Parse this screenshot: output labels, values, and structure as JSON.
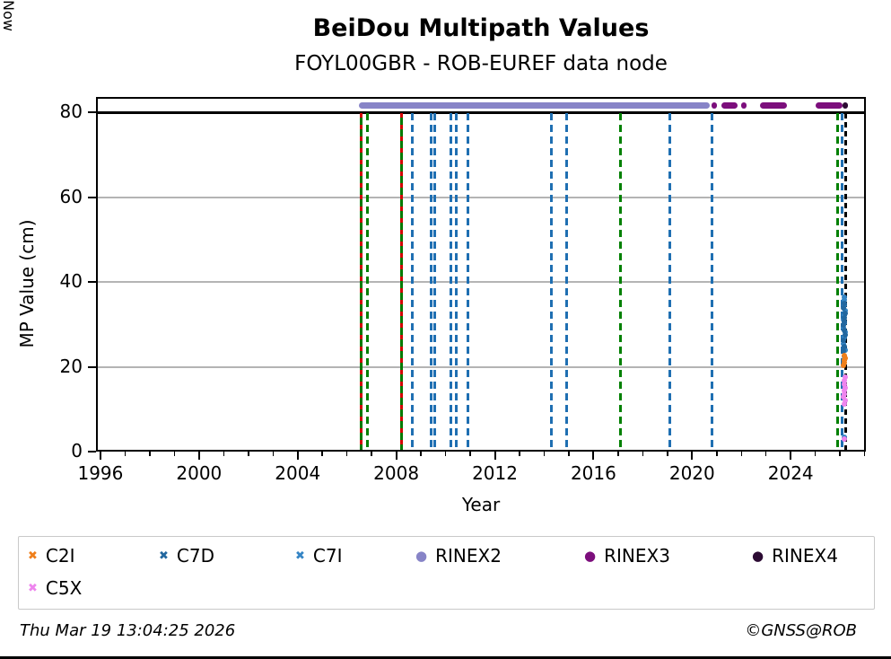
{
  "page": {
    "footer_left": "Thu Mar 19 13:04:25 2026",
    "footer_right": "©GNSS@ROB"
  },
  "chart_data": {
    "type": "scatter",
    "title": "BeiDou Multipath Values",
    "subtitle": "FOYL00GBR - ROB-EUREF data node",
    "xlabel": "Year",
    "ylabel": "MP Value (cm)",
    "xlim": [
      1995.82,
      2027.05
    ],
    "ylim": [
      0,
      83.6
    ],
    "xticks": [
      1996,
      2000,
      2004,
      2008,
      2012,
      2016,
      2020,
      2024
    ],
    "minor_xtick_step": 1,
    "yticks": [
      0,
      20,
      40,
      60,
      80
    ],
    "grid_y": [
      20,
      40,
      60
    ],
    "hline_y": 80,
    "legend_position": "bottom",
    "grid": "horizontal-only",
    "now_line": {
      "label": "Now",
      "year": 2026.22,
      "color": "#000000"
    },
    "event_lines": [
      {
        "year": 2006.58,
        "type": "red-green"
      },
      {
        "year": 2006.84,
        "type": "green"
      },
      {
        "year": 2008.22,
        "type": "red-green"
      },
      {
        "year": 2008.65,
        "type": "blue"
      },
      {
        "year": 2009.42,
        "type": "blue"
      },
      {
        "year": 2009.57,
        "type": "blue"
      },
      {
        "year": 2010.2,
        "type": "blue"
      },
      {
        "year": 2010.42,
        "type": "blue"
      },
      {
        "year": 2010.9,
        "type": "blue"
      },
      {
        "year": 2014.3,
        "type": "blue"
      },
      {
        "year": 2014.9,
        "type": "blue"
      },
      {
        "year": 2017.1,
        "type": "green"
      },
      {
        "year": 2019.1,
        "type": "blue"
      },
      {
        "year": 2020.8,
        "type": "blue"
      },
      {
        "year": 2025.92,
        "type": "green"
      },
      {
        "year": 2026.08,
        "type": "blue"
      }
    ],
    "event_line_colors": {
      "green": "#008000",
      "blue": "#1f6fb2",
      "red": "#d40000",
      "now": "#000000"
    },
    "bands": [
      {
        "name": "RINEX2",
        "color": "#8784c7",
        "y": 81.5,
        "start": 2006.5,
        "end": 2020.72
      },
      {
        "name": "RINEX3",
        "color": "#7c0e7c",
        "y": 81.5,
        "start": 2020.78,
        "end": 2020.86
      },
      {
        "name": "RINEX3",
        "color": "#7c0e7c",
        "y": 81.5,
        "start": 2021.2,
        "end": 2021.85
      },
      {
        "name": "RINEX3",
        "color": "#7c0e7c",
        "y": 81.5,
        "start": 2022.0,
        "end": 2022.18
      },
      {
        "name": "RINEX3",
        "color": "#7c0e7c",
        "y": 81.5,
        "start": 2022.75,
        "end": 2023.85
      },
      {
        "name": "RINEX3",
        "color": "#7c0e7c",
        "y": 81.5,
        "start": 2025.0,
        "end": 2026.1
      },
      {
        "name": "RINEX4",
        "color": "#2c0b33",
        "y": 81.5,
        "start": 2026.1,
        "end": 2026.32
      }
    ],
    "series": [
      {
        "name": "C7I",
        "color": "#3585c5",
        "marker": "x",
        "points": [
          [
            2026.16,
            22.4
          ],
          [
            2026.2,
            23.9
          ],
          [
            2026.14,
            25.4
          ],
          [
            2026.18,
            26.9
          ],
          [
            2026.21,
            28.2
          ],
          [
            2026.15,
            29.3
          ],
          [
            2026.19,
            30.3
          ],
          [
            2026.13,
            31.2
          ],
          [
            2026.17,
            32.2
          ],
          [
            2026.21,
            33.3
          ],
          [
            2026.16,
            34.5
          ],
          [
            2026.19,
            35.8
          ],
          [
            2026.17,
            36.4
          ],
          [
            2026.18,
            3.3
          ]
        ]
      },
      {
        "name": "C7D",
        "color": "#22679f",
        "marker": "x",
        "points": [
          [
            2026.13,
            23.6
          ],
          [
            2026.18,
            24.8
          ],
          [
            2026.15,
            26.2
          ],
          [
            2026.2,
            27.5
          ],
          [
            2026.17,
            28.6
          ],
          [
            2026.14,
            29.8
          ],
          [
            2026.19,
            30.7
          ],
          [
            2026.16,
            31.6
          ],
          [
            2026.2,
            32.6
          ],
          [
            2026.15,
            33.8
          ],
          [
            2026.18,
            35.0
          ]
        ]
      },
      {
        "name": "C2I",
        "color": "#ef7f1a",
        "marker": "x",
        "points": [
          [
            2026.15,
            20.3
          ],
          [
            2026.19,
            20.9
          ],
          [
            2026.16,
            21.5
          ],
          [
            2026.2,
            22.1
          ],
          [
            2026.17,
            22.7
          ]
        ]
      },
      {
        "name": "C5X",
        "color": "#ee85ee",
        "marker": "x",
        "points": [
          [
            2026.16,
            11.3
          ],
          [
            2026.2,
            12.1
          ],
          [
            2026.15,
            12.9
          ],
          [
            2026.19,
            13.6
          ],
          [
            2026.17,
            14.3
          ],
          [
            2026.21,
            15.1
          ],
          [
            2026.16,
            15.9
          ],
          [
            2026.18,
            16.7
          ],
          [
            2026.2,
            17.6
          ],
          [
            2026.17,
            3.0
          ]
        ]
      }
    ],
    "legend": [
      {
        "label": "C2I",
        "marker": "x",
        "color": "#ef7f1a"
      },
      {
        "label": "C7D",
        "marker": "x",
        "color": "#22679f"
      },
      {
        "label": "C7I",
        "marker": "x",
        "color": "#3585c5"
      },
      {
        "label": "RINEX2",
        "marker": "o",
        "color": "#8784c7"
      },
      {
        "label": "RINEX3",
        "marker": "o",
        "color": "#7c0e7c"
      },
      {
        "label": "RINEX4",
        "marker": "o",
        "color": "#2c0b33"
      },
      {
        "label": "C5X",
        "marker": "x",
        "color": "#ee85ee"
      }
    ]
  }
}
